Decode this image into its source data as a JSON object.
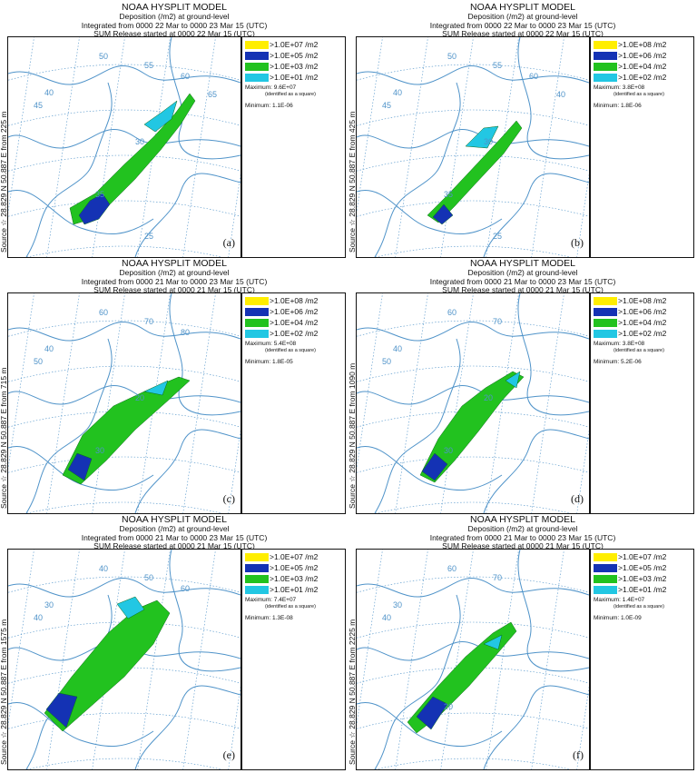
{
  "colors": {
    "yellow": "#ffee00",
    "blue": "#1432b4",
    "green": "#22c21f",
    "cyan": "#22c7e3",
    "map_line": "#4f93c9"
  },
  "panels": [
    {
      "id": "a",
      "title": "NOAA HYSPLIT MODEL",
      "line2": "Deposition  (/m2) at ground-level",
      "line3": "Integrated from 0000 22 Mar to 0000 23 Mar 15 (UTC)",
      "line4": "SUM  Release started at 0000 22 Mar 15 (UTC)",
      "side": "Source ☆ 28.829  N  50.887  E     from  225 m",
      "legend": [
        ">1.0E+07 /m2",
        ">1.0E+05 /m2",
        ">1.0E+03 /m2",
        ">1.0E+01 /m2"
      ],
      "maximum": "Maximum: 9.6E+07",
      "identified": "(identified as a square)",
      "minimum": "Minimum: 1.1E-06",
      "label": "(a)",
      "lat_labels": [
        "45",
        "40",
        "35",
        "30",
        "25"
      ],
      "lon_labels": [
        "50",
        "55",
        "60",
        "65"
      ]
    },
    {
      "id": "b",
      "title": "NOAA HYSPLIT MODEL",
      "line2": "Deposition  (/m2) at ground-level",
      "line3": "Integrated from 0000 22 Mar to 0000 23 Mar 15 (UTC)",
      "line4": "SUM  Release started at 0000 22 Mar 15 (UTC)",
      "side": "Source ☆ 28.829  N  50.887  E     from  425 m",
      "legend": [
        ">1.0E+08 /m2",
        ">1.0E+06 /m2",
        ">1.0E+04 /m2",
        ">1.0E+02 /m2"
      ],
      "maximum": "Maximum: 3.8E+08",
      "identified": "(identified as a square)",
      "minimum": "Minimum: 1.8E-06",
      "label": "(b)",
      "lat_labels": [
        "45",
        "40",
        "35",
        "30",
        "25"
      ],
      "lon_labels": [
        "50",
        "55",
        "60",
        "40"
      ]
    },
    {
      "id": "c",
      "title": "NOAA HYSPLIT MODEL",
      "line2": "Deposition  (/m2) at ground-level",
      "line3": "Integrated from 0000 21 Mar to 0000 23 Mar 15 (UTC)",
      "line4": "SUM  Release started at 0000 21 Mar 15 (UTC)",
      "side": "Source ☆ 28.829  N  50.887  E     from  715 m",
      "legend": [
        ">1.0E+08 /m2",
        ">1.0E+06 /m2",
        ">1.0E+04 /m2",
        ">1.0E+02 /m2"
      ],
      "maximum": "Maximum: 5.4E+08",
      "identified": "(identified as a square)",
      "minimum": "Minimum: 1.8E-05",
      "label": "(c)",
      "lat_labels": [
        "50",
        "40",
        "30",
        "20"
      ],
      "lon_labels": [
        "60",
        "70",
        "80"
      ]
    },
    {
      "id": "d",
      "title": "NOAA HYSPLIT MODEL",
      "line2": "Deposition  (/m2) at ground-level",
      "line3": "Integrated from 0000 21 Mar to 0000 23 Mar 15 (UTC)",
      "line4": "SUM  Release started at 0000 21 Mar 15 (UTC)",
      "side": "Source ☆ 28.829  N  50.887  E     from  1090 m",
      "legend": [
        ">1.0E+08 /m2",
        ">1.0E+06 /m2",
        ">1.0E+04 /m2",
        ">1.0E+02 /m2"
      ],
      "maximum": "Maximum: 3.8E+08",
      "identified": "(identified as a square)",
      "minimum": "Minimum: 5.2E-06",
      "label": "(d)",
      "lat_labels": [
        "50",
        "40",
        "30",
        "20"
      ],
      "lon_labels": [
        "60",
        "70"
      ]
    },
    {
      "id": "e",
      "title": "NOAA HYSPLIT MODEL",
      "line2": "Deposition  (/m2) at ground-level",
      "line3": "Integrated from 0000 21 Mar to 0000 23 Mar 15 (UTC)",
      "line4": "SUM  Release started at 0000 21 Mar 15 (UTC)",
      "side": "Source ☆ 28.829  N  50.887  E     from  1575 m",
      "legend": [
        ">1.0E+07 /m2",
        ">1.0E+05 /m2",
        ">1.0E+03 /m2",
        ">1.0E+01 /m2"
      ],
      "maximum": "Maximum: 7.4E+07",
      "identified": "(identified as a square)",
      "minimum": "Minimum: 1.3E-08",
      "label": "(e)",
      "lat_labels": [
        "40",
        "30"
      ],
      "lon_labels": [
        "40",
        "50",
        "60"
      ]
    },
    {
      "id": "f",
      "title": "NOAA HYSPLIT MODEL",
      "line2": "Deposition  (/m2) at ground-level",
      "line3": "Integrated from 0000 21 Mar to 0000 23 Mar 15 (UTC)",
      "line4": "SUM  Release started at 0000 21 Mar 15 (UTC)",
      "side": "Source ☆ 28.829  N  50.887  E     from  2225 m",
      "legend": [
        ">1.0E+07 /m2",
        ">1.0E+05 /m2",
        ">1.0E+03 /m2",
        ">1.0E+01 /m2"
      ],
      "maximum": "Maximum: 1.4E+07",
      "identified": "(identified as a square)",
      "minimum": "Minimum: 1.0E-09",
      "label": "(f)",
      "lat_labels": [
        "40",
        "30",
        "20"
      ],
      "lon_labels": [
        "60",
        "70"
      ]
    }
  ]
}
